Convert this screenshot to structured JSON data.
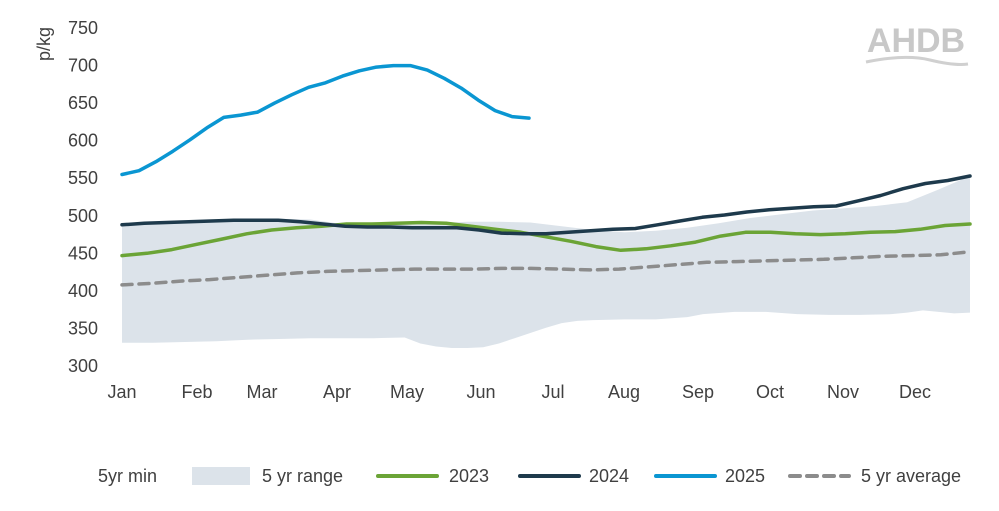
{
  "logo_text": "AHDB",
  "chart_data": {
    "type": "line",
    "title": "",
    "ylabel": "p/kg",
    "xlabel": "",
    "ylim": [
      300,
      750
    ],
    "yticks": [
      300,
      350,
      400,
      450,
      500,
      550,
      600,
      650,
      700,
      750
    ],
    "grid": false,
    "legend_position": "bottom",
    "categories": [
      "Jan",
      "Feb",
      "Mar",
      "Apr",
      "May",
      "Jun",
      "Jul",
      "Aug",
      "Sep",
      "Oct",
      "Nov",
      "Dec"
    ],
    "x_week_range": [
      1,
      52
    ],
    "range_band": {
      "name": "5 yr range",
      "color": "#dce3ea",
      "min": [
        [
          1,
          331
        ],
        [
          3,
          331
        ],
        [
          5,
          332
        ],
        [
          7,
          333
        ],
        [
          9,
          335
        ],
        [
          11,
          336
        ],
        [
          13,
          337
        ],
        [
          15,
          337
        ],
        [
          17,
          337
        ],
        [
          19,
          338
        ],
        [
          20,
          330
        ],
        [
          21,
          326
        ],
        [
          22,
          324
        ],
        [
          23,
          324
        ],
        [
          24,
          325
        ],
        [
          25,
          330
        ],
        [
          26,
          337
        ],
        [
          27,
          344
        ],
        [
          28,
          351
        ],
        [
          29,
          357
        ],
        [
          30,
          360
        ],
        [
          31,
          361
        ],
        [
          33,
          362
        ],
        [
          35,
          362
        ],
        [
          37,
          365
        ],
        [
          38,
          369
        ],
        [
          40,
          372
        ],
        [
          42,
          372
        ],
        [
          44,
          369
        ],
        [
          46,
          368
        ],
        [
          48,
          368
        ],
        [
          50,
          369
        ],
        [
          51,
          371
        ],
        [
          52,
          374
        ],
        [
          53,
          372
        ],
        [
          54,
          370
        ],
        [
          55,
          371
        ]
      ],
      "max": [
        [
          1,
          488
        ],
        [
          3,
          491
        ],
        [
          5,
          492
        ],
        [
          7,
          495
        ],
        [
          9,
          496
        ],
        [
          11,
          496
        ],
        [
          13,
          495
        ],
        [
          15,
          489
        ],
        [
          17,
          487
        ],
        [
          19,
          489
        ],
        [
          21,
          490
        ],
        [
          23,
          492
        ],
        [
          25,
          492
        ],
        [
          27,
          491
        ],
        [
          29,
          486
        ],
        [
          31,
          481
        ],
        [
          33,
          478
        ],
        [
          35,
          480
        ],
        [
          37,
          484
        ],
        [
          39,
          490
        ],
        [
          41,
          497
        ],
        [
          43,
          502
        ],
        [
          45,
          507
        ],
        [
          47,
          510
        ],
        [
          49,
          513
        ],
        [
          51,
          518
        ],
        [
          53,
          535
        ],
        [
          55,
          553
        ]
      ]
    },
    "series": [
      {
        "name": "2023",
        "color": "#6ba436",
        "dash": false,
        "values": [
          [
            1,
            447
          ],
          [
            3,
            450
          ],
          [
            5,
            455
          ],
          [
            7,
            462
          ],
          [
            9,
            469
          ],
          [
            11,
            476
          ],
          [
            13,
            481
          ],
          [
            15,
            484
          ],
          [
            17,
            486
          ],
          [
            19,
            489
          ],
          [
            21,
            489
          ],
          [
            23,
            490
          ],
          [
            25,
            491
          ],
          [
            27,
            490
          ],
          [
            29,
            486
          ],
          [
            31,
            482
          ],
          [
            33,
            478
          ],
          [
            35,
            472
          ],
          [
            37,
            466
          ],
          [
            39,
            459
          ],
          [
            41,
            454
          ],
          [
            43,
            456
          ],
          [
            45,
            460
          ],
          [
            47,
            465
          ],
          [
            49,
            473
          ],
          [
            51,
            478
          ],
          [
            53,
            478
          ],
          [
            55,
            476
          ],
          [
            57,
            475
          ],
          [
            59,
            476
          ],
          [
            61,
            478
          ],
          [
            63,
            479
          ],
          [
            65,
            482
          ],
          [
            67,
            487
          ],
          [
            69,
            489
          ]
        ]
      },
      {
        "name": "2024",
        "color": "#1e3a4c",
        "dash": false,
        "values": [
          [
            1,
            488
          ],
          [
            3,
            490
          ],
          [
            5,
            491
          ],
          [
            7,
            492
          ],
          [
            9,
            493
          ],
          [
            11,
            494
          ],
          [
            13,
            494
          ],
          [
            15,
            494
          ],
          [
            17,
            492
          ],
          [
            19,
            489
          ],
          [
            21,
            486
          ],
          [
            23,
            485
          ],
          [
            25,
            485
          ],
          [
            27,
            484
          ],
          [
            29,
            484
          ],
          [
            31,
            484
          ],
          [
            33,
            481
          ],
          [
            35,
            477
          ],
          [
            37,
            476
          ],
          [
            39,
            476
          ],
          [
            41,
            478
          ],
          [
            43,
            480
          ],
          [
            45,
            482
          ],
          [
            47,
            483
          ],
          [
            49,
            488
          ],
          [
            51,
            493
          ],
          [
            53,
            498
          ],
          [
            55,
            501
          ],
          [
            57,
            505
          ],
          [
            59,
            508
          ],
          [
            61,
            510
          ],
          [
            63,
            512
          ],
          [
            65,
            513
          ],
          [
            67,
            520
          ],
          [
            69,
            527
          ],
          [
            71,
            536
          ],
          [
            73,
            543
          ],
          [
            75,
            547
          ],
          [
            77,
            553
          ]
        ]
      },
      {
        "name": "2025",
        "color": "#0a96d2",
        "dash": false,
        "values": [
          [
            1,
            555
          ],
          [
            2,
            560
          ],
          [
            3,
            572
          ],
          [
            4,
            586
          ],
          [
            5,
            601
          ],
          [
            6,
            617
          ],
          [
            7,
            631
          ],
          [
            8,
            634
          ],
          [
            9,
            638
          ],
          [
            10,
            650
          ],
          [
            11,
            661
          ],
          [
            12,
            671
          ],
          [
            13,
            677
          ],
          [
            14,
            686
          ],
          [
            15,
            693
          ],
          [
            16,
            698
          ],
          [
            17,
            700
          ],
          [
            18,
            700
          ],
          [
            19,
            694
          ],
          [
            20,
            683
          ],
          [
            21,
            670
          ],
          [
            22,
            654
          ],
          [
            23,
            640
          ],
          [
            24,
            632
          ],
          [
            25,
            630
          ]
        ]
      },
      {
        "name": "5 yr average",
        "color": "#8c8c8c",
        "dash": true,
        "values": [
          [
            1,
            408
          ],
          [
            3,
            410
          ],
          [
            5,
            413
          ],
          [
            7,
            415
          ],
          [
            9,
            418
          ],
          [
            11,
            421
          ],
          [
            13,
            424
          ],
          [
            15,
            426
          ],
          [
            17,
            427
          ],
          [
            19,
            428
          ],
          [
            21,
            429
          ],
          [
            23,
            429
          ],
          [
            25,
            429
          ],
          [
            27,
            430
          ],
          [
            29,
            430
          ],
          [
            31,
            429
          ],
          [
            33,
            428
          ],
          [
            35,
            429
          ],
          [
            37,
            432
          ],
          [
            39,
            435
          ],
          [
            41,
            438
          ],
          [
            43,
            439
          ],
          [
            45,
            440
          ],
          [
            47,
            441
          ],
          [
            49,
            442
          ],
          [
            51,
            444
          ],
          [
            53,
            446
          ],
          [
            55,
            447
          ],
          [
            57,
            448
          ],
          [
            59,
            452
          ]
        ]
      }
    ],
    "legend": [
      {
        "label": "5yr min",
        "kind": "blank"
      },
      {
        "label": "5 yr range",
        "kind": "band"
      },
      {
        "label": "2023",
        "kind": "line",
        "color": "#6ba436"
      },
      {
        "label": "2024",
        "kind": "line",
        "color": "#1e3a4c"
      },
      {
        "label": "2025",
        "kind": "line",
        "color": "#0a96d2"
      },
      {
        "label": "5 yr average",
        "kind": "dash",
        "color": "#8c8c8c"
      }
    ]
  }
}
